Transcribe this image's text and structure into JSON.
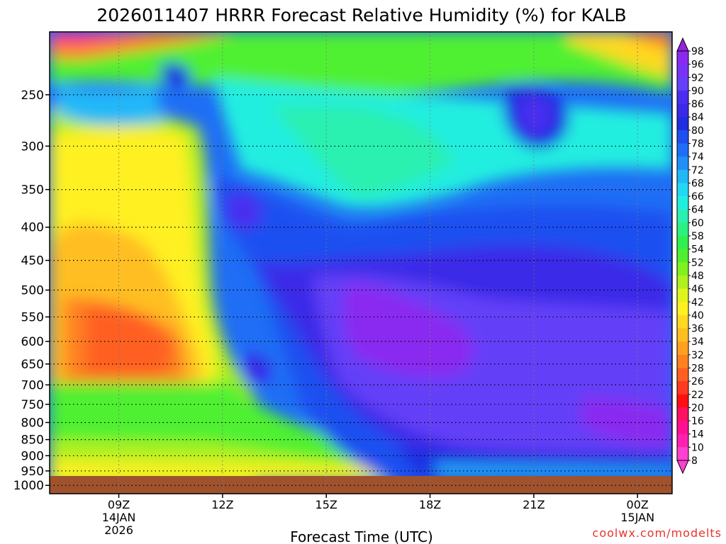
{
  "chart_data": {
    "type": "heatmap",
    "title": "2026011407 HRRR Forecast Relative Humidity (%) for KALB",
    "xlabel": "Forecast Time (UTC)",
    "ylabel": "",
    "x_ticks": [
      {
        "label": "09Z",
        "sub1": "14JAN",
        "sub2": "2026",
        "hour": 9
      },
      {
        "label": "12Z",
        "sub1": "",
        "sub2": "",
        "hour": 12
      },
      {
        "label": "15Z",
        "sub1": "",
        "sub2": "",
        "hour": 15
      },
      {
        "label": "18Z",
        "sub1": "",
        "sub2": "",
        "hour": 18
      },
      {
        "label": "21Z",
        "sub1": "",
        "sub2": "",
        "hour": 21
      },
      {
        "label": "00Z",
        "sub1": "15JAN",
        "sub2": "",
        "hour": 24
      }
    ],
    "xlim_hours": [
      7,
      25
    ],
    "y_ticks": [
      "250",
      "300",
      "350",
      "400",
      "450",
      "500",
      "550",
      "600",
      "650",
      "700",
      "750",
      "800",
      "850",
      "900",
      "950",
      "1000"
    ],
    "y_tick_values": [
      250,
      300,
      350,
      400,
      450,
      500,
      550,
      600,
      650,
      700,
      750,
      800,
      850,
      900,
      950,
      1000
    ],
    "ylim": [
      200,
      1030
    ],
    "y_scale": "log",
    "colorbar": {
      "labels": [
        "98",
        "96",
        "92",
        "90",
        "86",
        "84",
        "80",
        "78",
        "74",
        "72",
        "68",
        "66",
        "64",
        "60",
        "58",
        "54",
        "52",
        "48",
        "46",
        "42",
        "40",
        "36",
        "34",
        "32",
        "28",
        "26",
        "22",
        "20",
        "16",
        "14",
        "10",
        "8"
      ],
      "colors": [
        "#9a1fe0",
        "#8a2af0",
        "#7a33f5",
        "#6440f8",
        "#4a2ef0",
        "#3a2ae8",
        "#1f2ee0",
        "#1f4ff0",
        "#1f6ef5",
        "#1f90f8",
        "#22b8f8",
        "#22d8f5",
        "#22eee0",
        "#2cf0b0",
        "#2cf080",
        "#30f050",
        "#50f030",
        "#80f020",
        "#b0f020",
        "#e0f520",
        "#fff020",
        "#ffd820",
        "#ffbe20",
        "#ffa020",
        "#ff8220",
        "#ff6020",
        "#ff3a20",
        "#ff1010",
        "#ff1060",
        "#ff1090",
        "#ff20b0",
        "#ff40d0"
      ]
    },
    "regions": [
      {
        "desc": "upper-left dry",
        "x": [
          7,
          10.5
        ],
        "p": [
          200,
          215
        ],
        "rh": 16
      },
      {
        "desc": "low-level dry core",
        "x": [
          7.5,
          11
        ],
        "p": [
          520,
          640
        ],
        "rh": 32
      },
      {
        "desc": "mid-level moist",
        "x": [
          15,
          25
        ],
        "p": [
          450,
          850
        ],
        "rh": 96
      },
      {
        "desc": "upper moist pocket",
        "x": [
          20.5,
          22
        ],
        "p": [
          250,
          320
        ],
        "rh": 90
      }
    ],
    "grid": true,
    "legend": "right"
  },
  "watermark": "coolwx.com/modelts",
  "colors": {
    "ground": "#a0522d",
    "background": "#ffffff"
  }
}
